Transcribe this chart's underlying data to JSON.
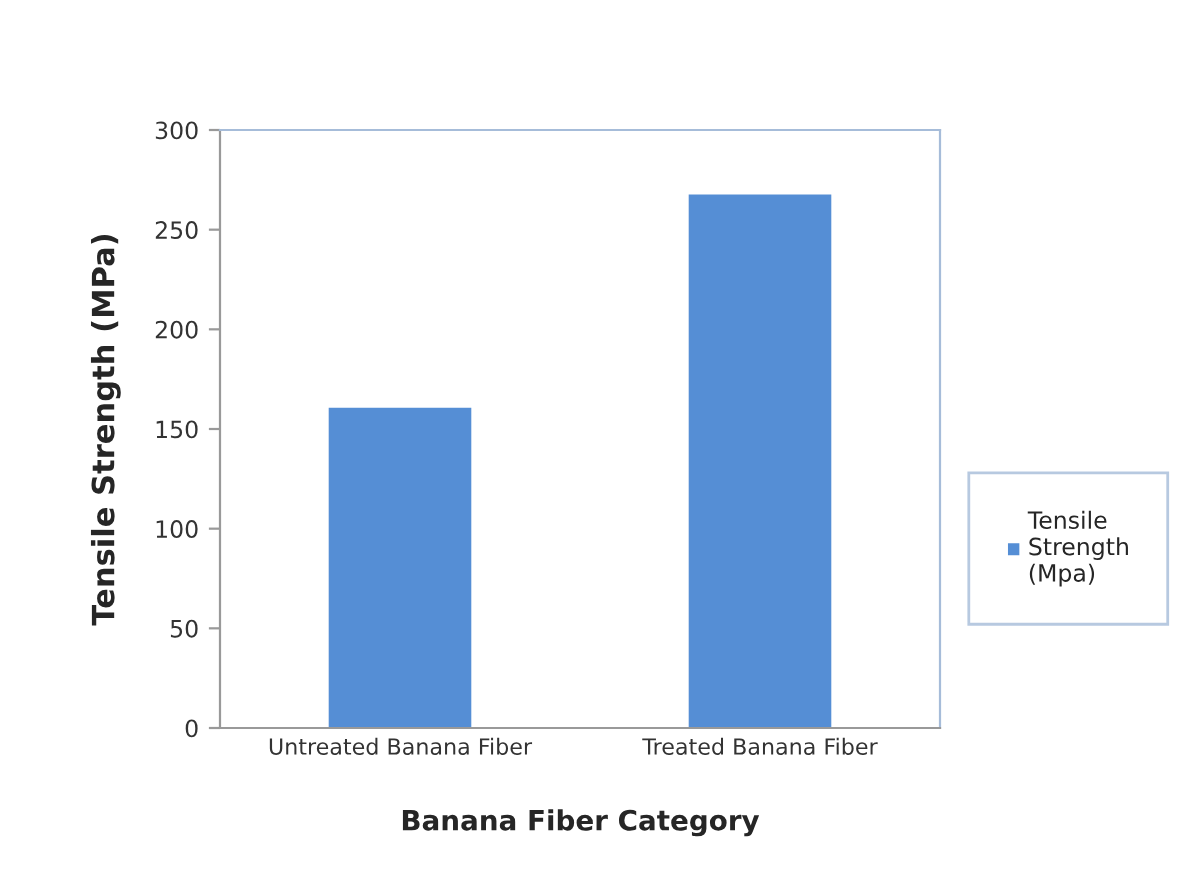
{
  "chart_data": {
    "type": "bar",
    "xlabel": "Banana Fiber Category",
    "ylabel": "Tensile Strength (MPa)",
    "categories": [
      "Untreated Banana Fiber",
      "Treated Banana Fiber"
    ],
    "series": [
      {
        "name": "Tensile Strength (Mpa)",
        "color": "#558ed5",
        "values": [
          161,
          268
        ]
      }
    ],
    "ylim": [
      0,
      300
    ],
    "yticks": [
      0,
      50,
      100,
      150,
      200,
      250,
      300
    ],
    "grid": false,
    "legend": "right"
  }
}
